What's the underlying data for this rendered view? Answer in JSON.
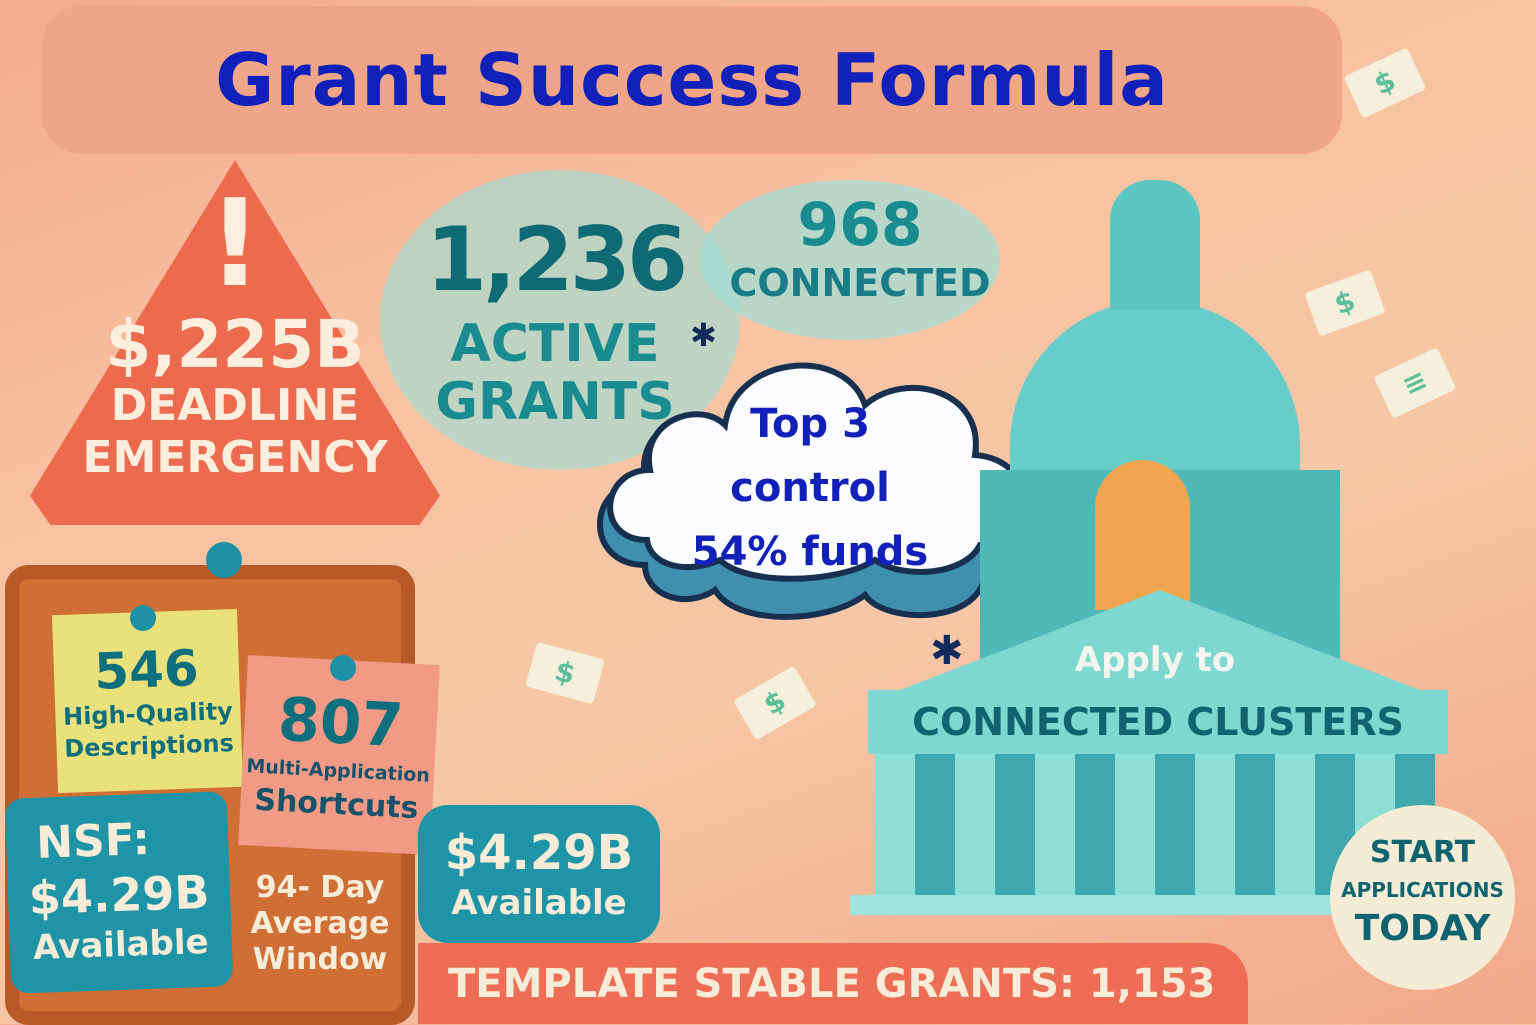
{
  "title": "Grant Success Formula",
  "warning": {
    "icon": "exclamation-icon",
    "amount": "$,225B",
    "line1": "DEADLINE",
    "line2": "EMERGENCY"
  },
  "active": {
    "number": "1,236",
    "line1": "ACTIVE",
    "line2": "GRANTS"
  },
  "connected": {
    "number": "968",
    "label": "CONNECTED"
  },
  "cloud": {
    "line1": "Top 3",
    "line2": "control",
    "line3": "54% funds"
  },
  "notes": {
    "quality": {
      "number": "546",
      "line1": "High-Quality",
      "line2": "Descriptions"
    },
    "shortcuts": {
      "number": "807",
      "line1": "Multi-Application",
      "line2": "Shortcuts"
    }
  },
  "nsf": {
    "line1": "NSF:",
    "amount": "$4.29B",
    "label": "Available"
  },
  "window": {
    "line1": "94- Day",
    "line2": "Average",
    "line3": "Window"
  },
  "available": {
    "amount": "$4.29B",
    "label": "Available"
  },
  "capitol": {
    "line1": "Apply to",
    "line2": "CONNECTED CLUSTERS"
  },
  "banner": "TEMPLATE STABLE GRANTS: 1,153",
  "cta": {
    "line1": "START",
    "line2": "APPLICATIONS",
    "line3": "TODAY"
  },
  "colors": {
    "title": "#1020b8",
    "teal": "#1f94a6",
    "coral": "#ec6a4e",
    "cream": "#f6ecd8"
  }
}
